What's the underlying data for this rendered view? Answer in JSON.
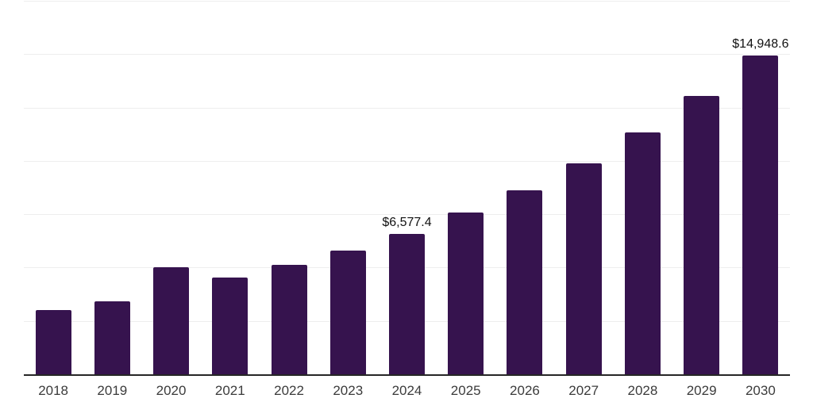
{
  "chart_data": {
    "type": "bar",
    "title": "",
    "xlabel": "",
    "ylabel": "",
    "categories": [
      "2018",
      "2019",
      "2020",
      "2021",
      "2022",
      "2023",
      "2024",
      "2025",
      "2026",
      "2027",
      "2028",
      "2029",
      "2030"
    ],
    "values": [
      3010,
      3410,
      5030,
      4520,
      5140,
      5795,
      6577.4,
      7565,
      8615,
      9900,
      11335,
      13025,
      14948.6
    ],
    "annotations": [
      {
        "category": "2024",
        "text": "$6,577.4"
      },
      {
        "category": "2030",
        "text": "$14,948.6"
      }
    ],
    "ylim": [
      0,
      17500
    ],
    "gridline_interval": 2500,
    "grid": "horizontal-only",
    "legend": "none",
    "y_tick_labels_visible": false,
    "colors": {
      "bar": "#36134e",
      "grid": "#eeeeee",
      "axis_line": "#262626",
      "tick_label": "#3b3b3b",
      "data_label": "#111111",
      "background": "#ffffff"
    }
  }
}
